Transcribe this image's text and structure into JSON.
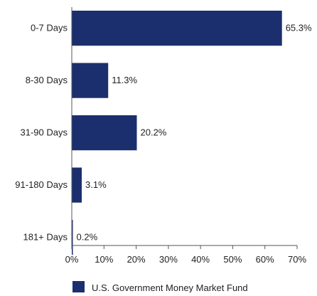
{
  "chart_data": {
    "type": "bar",
    "orientation": "horizontal",
    "categories": [
      "0-7 Days",
      "8-30 Days",
      "31-90 Days",
      "91-180 Days",
      "181+ Days"
    ],
    "series": [
      {
        "name": "U.S. Government Money Market Fund",
        "values": [
          65.3,
          11.3,
          20.2,
          3.1,
          0.2
        ],
        "value_labels": [
          "65.3%",
          "11.3%",
          "20.2%",
          "3.1%",
          "0.2%"
        ]
      }
    ],
    "x_ticks": [
      0,
      10,
      20,
      30,
      40,
      50,
      60,
      70
    ],
    "x_tick_labels": [
      "0%",
      "10%",
      "20%",
      "30%",
      "40%",
      "50%",
      "60%",
      "70%"
    ],
    "xlim": [
      0,
      70
    ],
    "title": "",
    "xlabel": "",
    "ylabel": "",
    "grid": false,
    "legend_position": "bottom",
    "bar_color": "#1b2f6e"
  }
}
